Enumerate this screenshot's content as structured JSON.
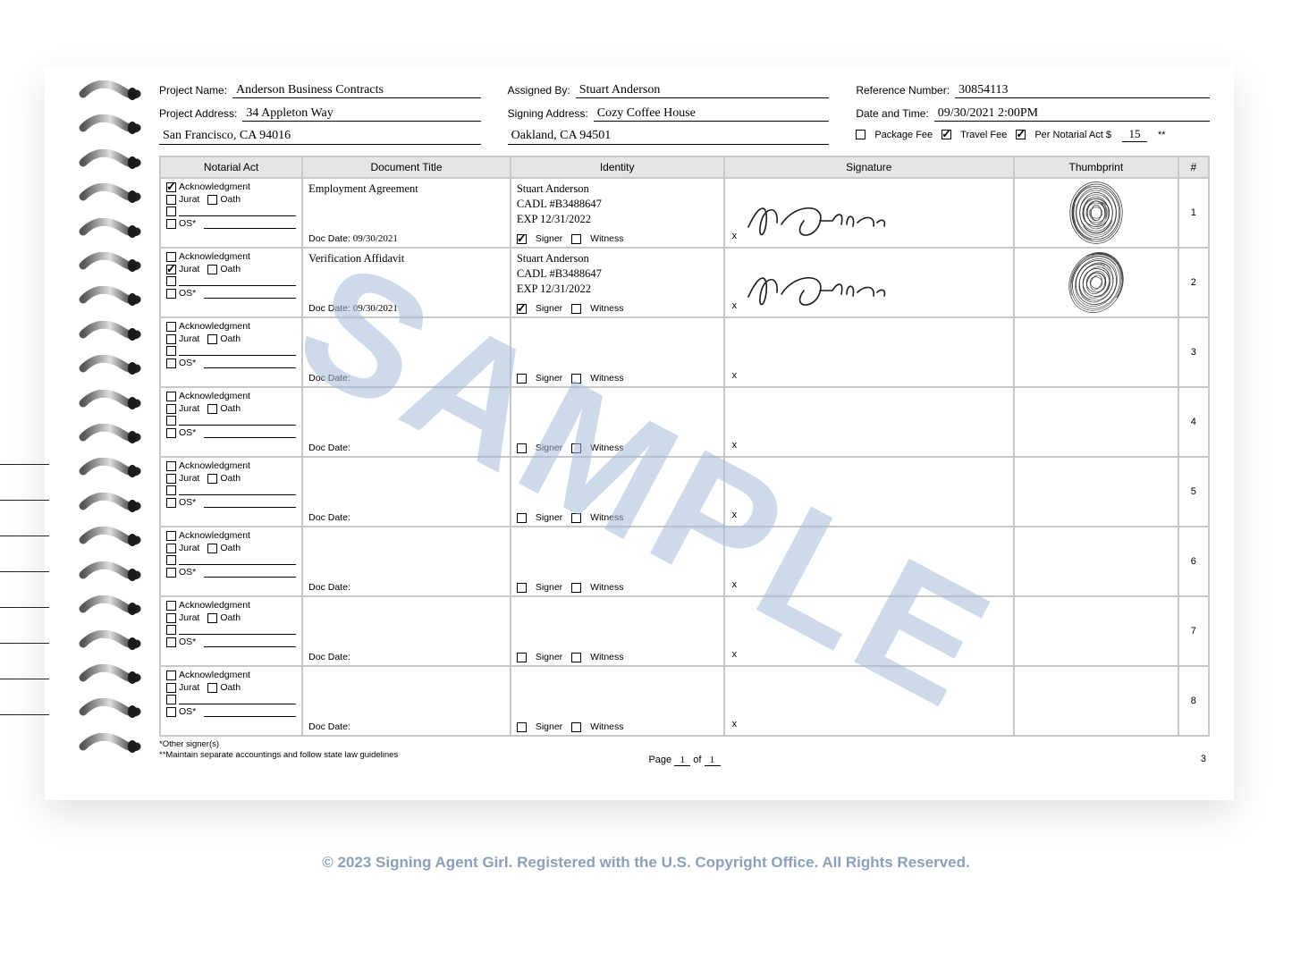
{
  "header": {
    "project_name_label": "Project Name:",
    "project_name": "Anderson Business Contracts",
    "project_address_label": "Project Address:",
    "project_address": "34 Appleton Way",
    "project_city": "San Francisco, CA 94016",
    "assigned_by_label": "Assigned By:",
    "assigned_by": "Stuart Anderson",
    "signing_address_label": "Signing Address:",
    "signing_address": "Cozy Coffee House",
    "signing_city": "Oakland, CA 94501",
    "ref_label": "Reference Number:",
    "ref": "30854113",
    "datetime_label": "Date and Time:",
    "datetime": "09/30/2021   2:00PM",
    "package_fee_label": "Package Fee",
    "travel_fee_label": "Travel Fee",
    "per_act_label": "Per Notarial Act $",
    "per_act_amount": "15",
    "package_fee_checked": false,
    "travel_fee_checked": true,
    "per_act_checked": true
  },
  "columns": {
    "act": "Notarial Act",
    "title": "Document Title",
    "identity": "Identity",
    "signature": "Signature",
    "thumb": "Thumbprint",
    "num": "#"
  },
  "act_labels": {
    "ack": "Acknowledgment",
    "jurat": "Jurat",
    "oath": "Oath",
    "os": "OS*"
  },
  "id_labels": {
    "signer": "Signer",
    "witness": "Witness"
  },
  "docdate_label": "Doc Date:",
  "rows": [
    {
      "num": "1",
      "ack": true,
      "jurat": false,
      "oath": false,
      "title": "Employment Agreement",
      "doc_date": "09/30/2021",
      "id_name": "Stuart Anderson",
      "id_line2": "CADL #B3488647",
      "id_line3": "EXP 12/31/2022",
      "signer": true,
      "witness": false,
      "has_sig": true,
      "has_thumb": true,
      "thumb_rot": 0
    },
    {
      "num": "2",
      "ack": false,
      "jurat": true,
      "oath": false,
      "title": "Verification Affidavit",
      "doc_date": "09/30/2021",
      "id_name": "Stuart Anderson",
      "id_line2": "CADL #B3488647",
      "id_line3": "EXP 12/31/2022",
      "signer": true,
      "witness": false,
      "has_sig": true,
      "has_thumb": true,
      "thumb_rot": 25
    },
    {
      "num": "3",
      "ack": false,
      "jurat": false,
      "oath": false,
      "title": "",
      "doc_date": "",
      "id_name": "",
      "id_line2": "",
      "id_line3": "",
      "signer": false,
      "witness": false,
      "has_sig": false,
      "has_thumb": false
    },
    {
      "num": "4",
      "ack": false,
      "jurat": false,
      "oath": false,
      "title": "",
      "doc_date": "",
      "id_name": "",
      "id_line2": "",
      "id_line3": "",
      "signer": false,
      "witness": false,
      "has_sig": false,
      "has_thumb": false
    },
    {
      "num": "5",
      "ack": false,
      "jurat": false,
      "oath": false,
      "title": "",
      "doc_date": "",
      "id_name": "",
      "id_line2": "",
      "id_line3": "",
      "signer": false,
      "witness": false,
      "has_sig": false,
      "has_thumb": false
    },
    {
      "num": "6",
      "ack": false,
      "jurat": false,
      "oath": false,
      "title": "",
      "doc_date": "",
      "id_name": "",
      "id_line2": "",
      "id_line3": "",
      "signer": false,
      "witness": false,
      "has_sig": false,
      "has_thumb": false
    },
    {
      "num": "7",
      "ack": false,
      "jurat": false,
      "oath": false,
      "title": "",
      "doc_date": "",
      "id_name": "",
      "id_line2": "",
      "id_line3": "",
      "signer": false,
      "witness": false,
      "has_sig": false,
      "has_thumb": false
    },
    {
      "num": "8",
      "ack": false,
      "jurat": false,
      "oath": false,
      "title": "",
      "doc_date": "",
      "id_name": "",
      "id_line2": "",
      "id_line3": "",
      "signer": false,
      "witness": false,
      "has_sig": false,
      "has_thumb": false
    }
  ],
  "footnotes": {
    "f1": "*Other signer(s)",
    "f2": "**Maintain separate accountings and follow state law guidelines"
  },
  "pager": {
    "label_page": "Page",
    "page": "1",
    "label_of": "of",
    "total": "1"
  },
  "page_number": "3",
  "watermark": "SAMPLE",
  "copyright": "© 2023 Signing Agent Girl. Registered with the U.S. Copyright Office. All Rights Reserved.",
  "colors": {
    "header_bg": "#e5e5e5",
    "border": "#c8c8c8",
    "watermark": "#a4bdd9",
    "copyright": "#8aa0b8"
  }
}
